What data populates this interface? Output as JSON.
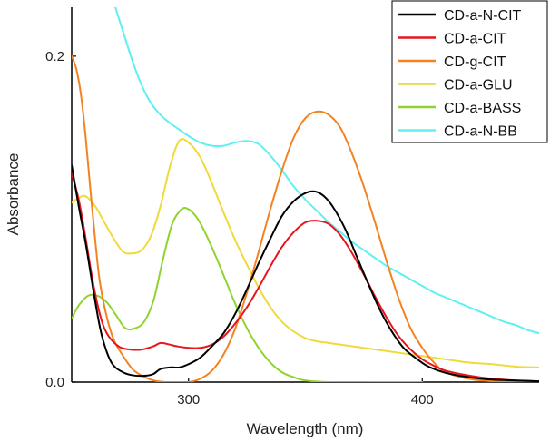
{
  "chart_data": {
    "type": "line",
    "title": "",
    "xlabel": "Wavelength (nm)",
    "ylabel": "Absorbance",
    "xlim": [
      250,
      450
    ],
    "ylim": [
      0.0,
      0.23
    ],
    "xticks": [
      300,
      400
    ],
    "xtick_labels": [
      "300",
      "400"
    ],
    "yticks": [
      0.0,
      0.2
    ],
    "ytick_labels": [
      "0.0",
      "0.2"
    ],
    "grid": false,
    "legend_position": "top-right",
    "series": [
      {
        "name": "CD-a-N-CIT",
        "color": "#000000",
        "points": [
          [
            250,
            0.133
          ],
          [
            253,
            0.108
          ],
          [
            256,
            0.085
          ],
          [
            260,
            0.05
          ],
          [
            263,
            0.028
          ],
          [
            267,
            0.012
          ],
          [
            272,
            0.006
          ],
          [
            277,
            0.004
          ],
          [
            282,
            0.004
          ],
          [
            285,
            0.005
          ],
          [
            288,
            0.008
          ],
          [
            292,
            0.009
          ],
          [
            296,
            0.009
          ],
          [
            300,
            0.011
          ],
          [
            305,
            0.015
          ],
          [
            310,
            0.022
          ],
          [
            315,
            0.03
          ],
          [
            320,
            0.042
          ],
          [
            325,
            0.057
          ],
          [
            330,
            0.073
          ],
          [
            335,
            0.088
          ],
          [
            340,
            0.102
          ],
          [
            345,
            0.111
          ],
          [
            350,
            0.116
          ],
          [
            354,
            0.117
          ],
          [
            358,
            0.114
          ],
          [
            362,
            0.107
          ],
          [
            367,
            0.094
          ],
          [
            372,
            0.077
          ],
          [
            377,
            0.06
          ],
          [
            382,
            0.044
          ],
          [
            387,
            0.031
          ],
          [
            392,
            0.021
          ],
          [
            397,
            0.015
          ],
          [
            402,
            0.01
          ],
          [
            407,
            0.007
          ],
          [
            412,
            0.005
          ],
          [
            420,
            0.003
          ],
          [
            430,
            0.0015
          ],
          [
            440,
            0.001
          ],
          [
            450,
            0.0005
          ]
        ]
      },
      {
        "name": "CD-a-CIT",
        "color": "#e8141b",
        "points": [
          [
            250,
            0.128
          ],
          [
            253,
            0.112
          ],
          [
            256,
            0.088
          ],
          [
            259,
            0.062
          ],
          [
            262,
            0.042
          ],
          [
            265,
            0.03
          ],
          [
            270,
            0.022
          ],
          [
            275,
            0.02
          ],
          [
            280,
            0.02
          ],
          [
            285,
            0.022
          ],
          [
            288,
            0.024
          ],
          [
            292,
            0.023
          ],
          [
            295,
            0.022
          ],
          [
            300,
            0.021
          ],
          [
            305,
            0.021
          ],
          [
            310,
            0.023
          ],
          [
            315,
            0.028
          ],
          [
            320,
            0.036
          ],
          [
            325,
            0.046
          ],
          [
            330,
            0.058
          ],
          [
            335,
            0.071
          ],
          [
            340,
            0.083
          ],
          [
            345,
            0.092
          ],
          [
            350,
            0.098
          ],
          [
            355,
            0.099
          ],
          [
            360,
            0.097
          ],
          [
            365,
            0.09
          ],
          [
            370,
            0.079
          ],
          [
            375,
            0.066
          ],
          [
            380,
            0.052
          ],
          [
            385,
            0.039
          ],
          [
            390,
            0.028
          ],
          [
            395,
            0.02
          ],
          [
            400,
            0.014
          ],
          [
            405,
            0.01
          ],
          [
            410,
            0.007
          ],
          [
            420,
            0.004
          ],
          [
            430,
            0.002
          ],
          [
            440,
            0.001
          ],
          [
            450,
            0.0005
          ]
        ]
      },
      {
        "name": "CD-g-CIT",
        "color": "#f58220",
        "points": [
          [
            250,
            0.2
          ],
          [
            252,
            0.192
          ],
          [
            254,
            0.176
          ],
          [
            256,
            0.15
          ],
          [
            258,
            0.118
          ],
          [
            260,
            0.088
          ],
          [
            262,
            0.062
          ],
          [
            265,
            0.04
          ],
          [
            268,
            0.026
          ],
          [
            272,
            0.016
          ],
          [
            276,
            0.008
          ],
          [
            280,
            0.004
          ],
          [
            285,
            0.001
          ],
          [
            290,
            0.0
          ],
          [
            295,
            0.0
          ],
          [
            300,
            0.0
          ],
          [
            305,
            0.002
          ],
          [
            310,
            0.007
          ],
          [
            315,
            0.017
          ],
          [
            320,
            0.033
          ],
          [
            325,
            0.055
          ],
          [
            330,
            0.08
          ],
          [
            335,
            0.106
          ],
          [
            340,
            0.13
          ],
          [
            345,
            0.15
          ],
          [
            350,
            0.162
          ],
          [
            355,
            0.166
          ],
          [
            360,
            0.164
          ],
          [
            365,
            0.156
          ],
          [
            370,
            0.14
          ],
          [
            375,
            0.12
          ],
          [
            380,
            0.097
          ],
          [
            385,
            0.073
          ],
          [
            390,
            0.051
          ],
          [
            395,
            0.033
          ],
          [
            400,
            0.021
          ],
          [
            405,
            0.012
          ],
          [
            410,
            0.006
          ],
          [
            420,
            0.002
          ],
          [
            430,
            0.0005
          ],
          [
            440,
            0.0
          ],
          [
            450,
            0.0
          ]
        ]
      },
      {
        "name": "CD-a-GLU",
        "color": "#eedb3a",
        "points": [
          [
            250,
            0.11
          ],
          [
            253,
            0.113
          ],
          [
            256,
            0.114
          ],
          [
            260,
            0.108
          ],
          [
            264,
            0.098
          ],
          [
            268,
            0.088
          ],
          [
            272,
            0.08
          ],
          [
            276,
            0.079
          ],
          [
            280,
            0.081
          ],
          [
            284,
            0.09
          ],
          [
            288,
            0.108
          ],
          [
            292,
            0.132
          ],
          [
            296,
            0.148
          ],
          [
            300,
            0.147
          ],
          [
            305,
            0.138
          ],
          [
            310,
            0.122
          ],
          [
            315,
            0.104
          ],
          [
            320,
            0.087
          ],
          [
            325,
            0.072
          ],
          [
            330,
            0.058
          ],
          [
            335,
            0.046
          ],
          [
            340,
            0.037
          ],
          [
            345,
            0.031
          ],
          [
            350,
            0.027
          ],
          [
            355,
            0.025
          ],
          [
            360,
            0.024
          ],
          [
            370,
            0.022
          ],
          [
            380,
            0.02
          ],
          [
            390,
            0.018
          ],
          [
            400,
            0.016
          ],
          [
            410,
            0.014
          ],
          [
            420,
            0.012
          ],
          [
            430,
            0.011
          ],
          [
            440,
            0.0095
          ],
          [
            450,
            0.009
          ]
        ]
      },
      {
        "name": "CD-a-BASS",
        "color": "#8fd42e",
        "points": [
          [
            250,
            0.039
          ],
          [
            253,
            0.047
          ],
          [
            257,
            0.053
          ],
          [
            261,
            0.053
          ],
          [
            265,
            0.049
          ],
          [
            269,
            0.041
          ],
          [
            273,
            0.033
          ],
          [
            277,
            0.033
          ],
          [
            281,
            0.037
          ],
          [
            285,
            0.05
          ],
          [
            289,
            0.075
          ],
          [
            293,
            0.097
          ],
          [
            297,
            0.106
          ],
          [
            300,
            0.106
          ],
          [
            304,
            0.1
          ],
          [
            308,
            0.089
          ],
          [
            312,
            0.076
          ],
          [
            316,
            0.062
          ],
          [
            320,
            0.048
          ],
          [
            325,
            0.033
          ],
          [
            330,
            0.021
          ],
          [
            335,
            0.012
          ],
          [
            340,
            0.006
          ],
          [
            345,
            0.003
          ],
          [
            350,
            0.001
          ],
          [
            360,
            0.0
          ],
          [
            380,
            0.0
          ],
          [
            400,
            0.0
          ]
        ]
      },
      {
        "name": "CD-a-N-BB",
        "color": "#5ef0f2",
        "points": [
          [
            268,
            0.233
          ],
          [
            272,
            0.215
          ],
          [
            276,
            0.197
          ],
          [
            280,
            0.182
          ],
          [
            284,
            0.171
          ],
          [
            288,
            0.164
          ],
          [
            292,
            0.159
          ],
          [
            296,
            0.155
          ],
          [
            300,
            0.151
          ],
          [
            305,
            0.147
          ],
          [
            310,
            0.145
          ],
          [
            315,
            0.145
          ],
          [
            320,
            0.147
          ],
          [
            325,
            0.148
          ],
          [
            330,
            0.146
          ],
          [
            335,
            0.139
          ],
          [
            340,
            0.13
          ],
          [
            345,
            0.12
          ],
          [
            350,
            0.112
          ],
          [
            355,
            0.105
          ],
          [
            360,
            0.098
          ],
          [
            365,
            0.092
          ],
          [
            370,
            0.086
          ],
          [
            375,
            0.081
          ],
          [
            380,
            0.076
          ],
          [
            385,
            0.071
          ],
          [
            390,
            0.067
          ],
          [
            395,
            0.063
          ],
          [
            400,
            0.059
          ],
          [
            405,
            0.055
          ],
          [
            410,
            0.052
          ],
          [
            415,
            0.049
          ],
          [
            420,
            0.046
          ],
          [
            425,
            0.043
          ],
          [
            430,
            0.04
          ],
          [
            435,
            0.037
          ],
          [
            440,
            0.035
          ],
          [
            445,
            0.032
          ],
          [
            450,
            0.03
          ]
        ]
      }
    ]
  }
}
